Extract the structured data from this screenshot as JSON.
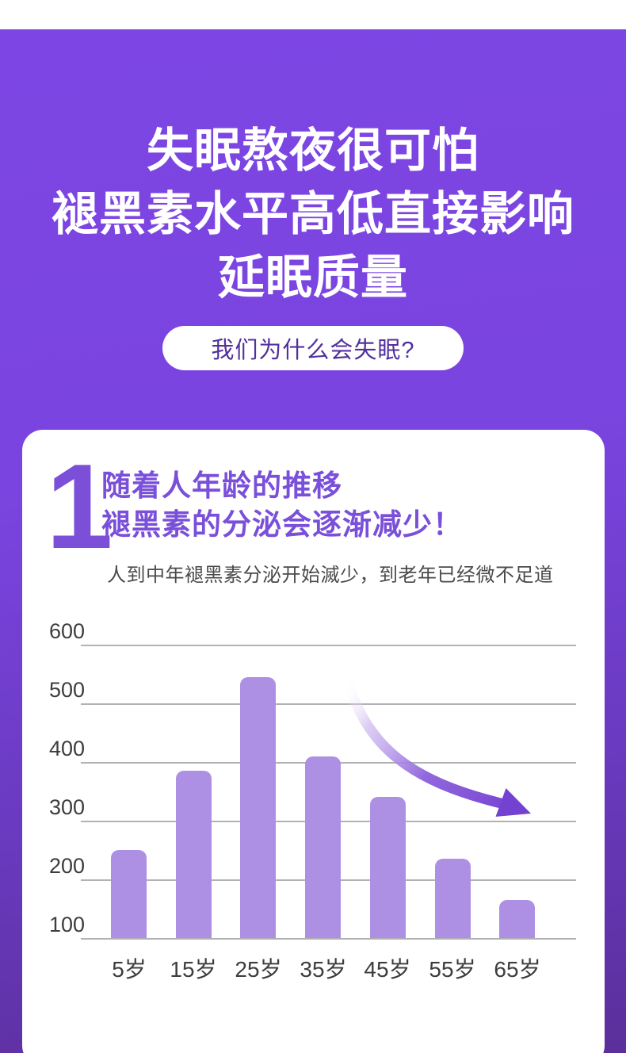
{
  "page": {
    "background": {
      "top_strip_color": "#ffffff",
      "gradient_top": "#7d46e4",
      "gradient_bottom": "#5b2f9b"
    },
    "hero": {
      "lines": [
        "失眠熬夜很可怕",
        "褪黑素水平高低直接影响",
        "延眠质量"
      ],
      "text_color": "#ffffff"
    },
    "pill": {
      "label": "我们为什么会失眠?",
      "text_color": "#52309c",
      "bg_color": "#ffffff"
    }
  },
  "card": {
    "step_number": "1",
    "title_lines": [
      "随着人年龄的推移",
      "褪黑素的分泌会逐渐减少！"
    ],
    "subtitle": "人到中年褪黑素分泌开始滅少，到老年已经微不足道",
    "accent_color": "#7a4fd9",
    "subtitle_color": "#4a4a4a"
  },
  "chart_data": {
    "type": "bar",
    "title": "随着人年龄的推移 褪黑素的分泌会逐渐减少！",
    "subtitle": "人到中年褪黑素分泌开始滅少，到老年已经微不足道",
    "categories": [
      "5岁",
      "15岁",
      "25岁",
      "35岁",
      "45岁",
      "55岁",
      "65岁"
    ],
    "values": [
      250,
      385,
      545,
      410,
      340,
      235,
      165
    ],
    "xlabel": "",
    "ylabel": "",
    "ylim": [
      100,
      600
    ],
    "yticks": [
      600,
      500,
      400,
      300,
      200,
      100
    ],
    "grid": true,
    "legend": false,
    "bar_color": "#ad90e3",
    "gridline_color": "#b2b2b6",
    "tick_label_color": "#3d3d3d",
    "annotation": {
      "type": "decreasing-trend-arrow",
      "color": "#7442d1"
    }
  }
}
